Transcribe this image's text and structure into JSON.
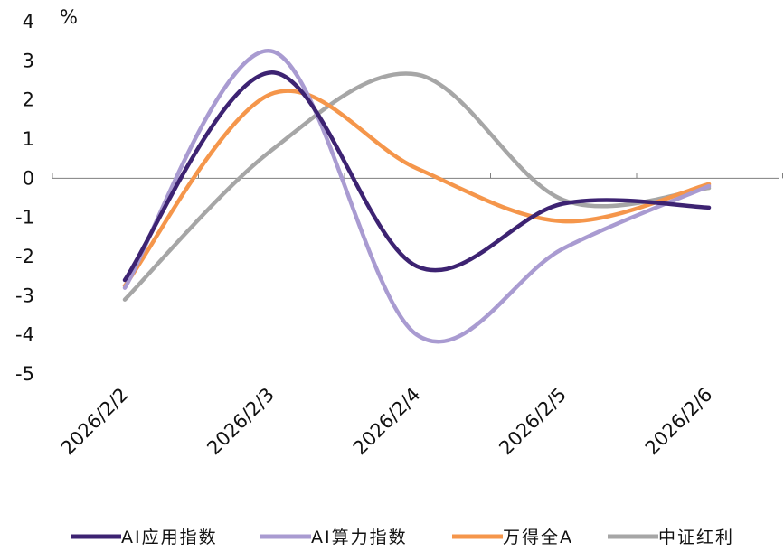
{
  "chart_data": {
    "type": "line",
    "title": "",
    "xlabel": "",
    "ylabel": "%",
    "ylim": [
      -5,
      4
    ],
    "yticks": [
      4,
      3,
      2,
      1,
      0,
      -1,
      -2,
      -3,
      -4,
      -5
    ],
    "categories": [
      "2026/2/2",
      "2026/2/3",
      "2026/2/4",
      "2026/2/5",
      "2026/2/6"
    ],
    "grid": false,
    "legend_position": "bottom",
    "series": [
      {
        "name": "AI应用指数",
        "color": "#3d2372",
        "values": [
          -2.6,
          2.7,
          -2.25,
          -0.65,
          -0.75
        ]
      },
      {
        "name": "AI算力指数",
        "color": "#a99bd1",
        "values": [
          -2.8,
          3.25,
          -4.0,
          -1.8,
          -0.2
        ]
      },
      {
        "name": "万得全A",
        "color": "#f5964b",
        "values": [
          -2.75,
          2.15,
          0.25,
          -1.1,
          -0.15
        ]
      },
      {
        "name": "中证红利",
        "color": "#a6a6a6",
        "values": [
          -3.1,
          0.7,
          2.65,
          -0.55,
          -0.25
        ]
      }
    ]
  }
}
